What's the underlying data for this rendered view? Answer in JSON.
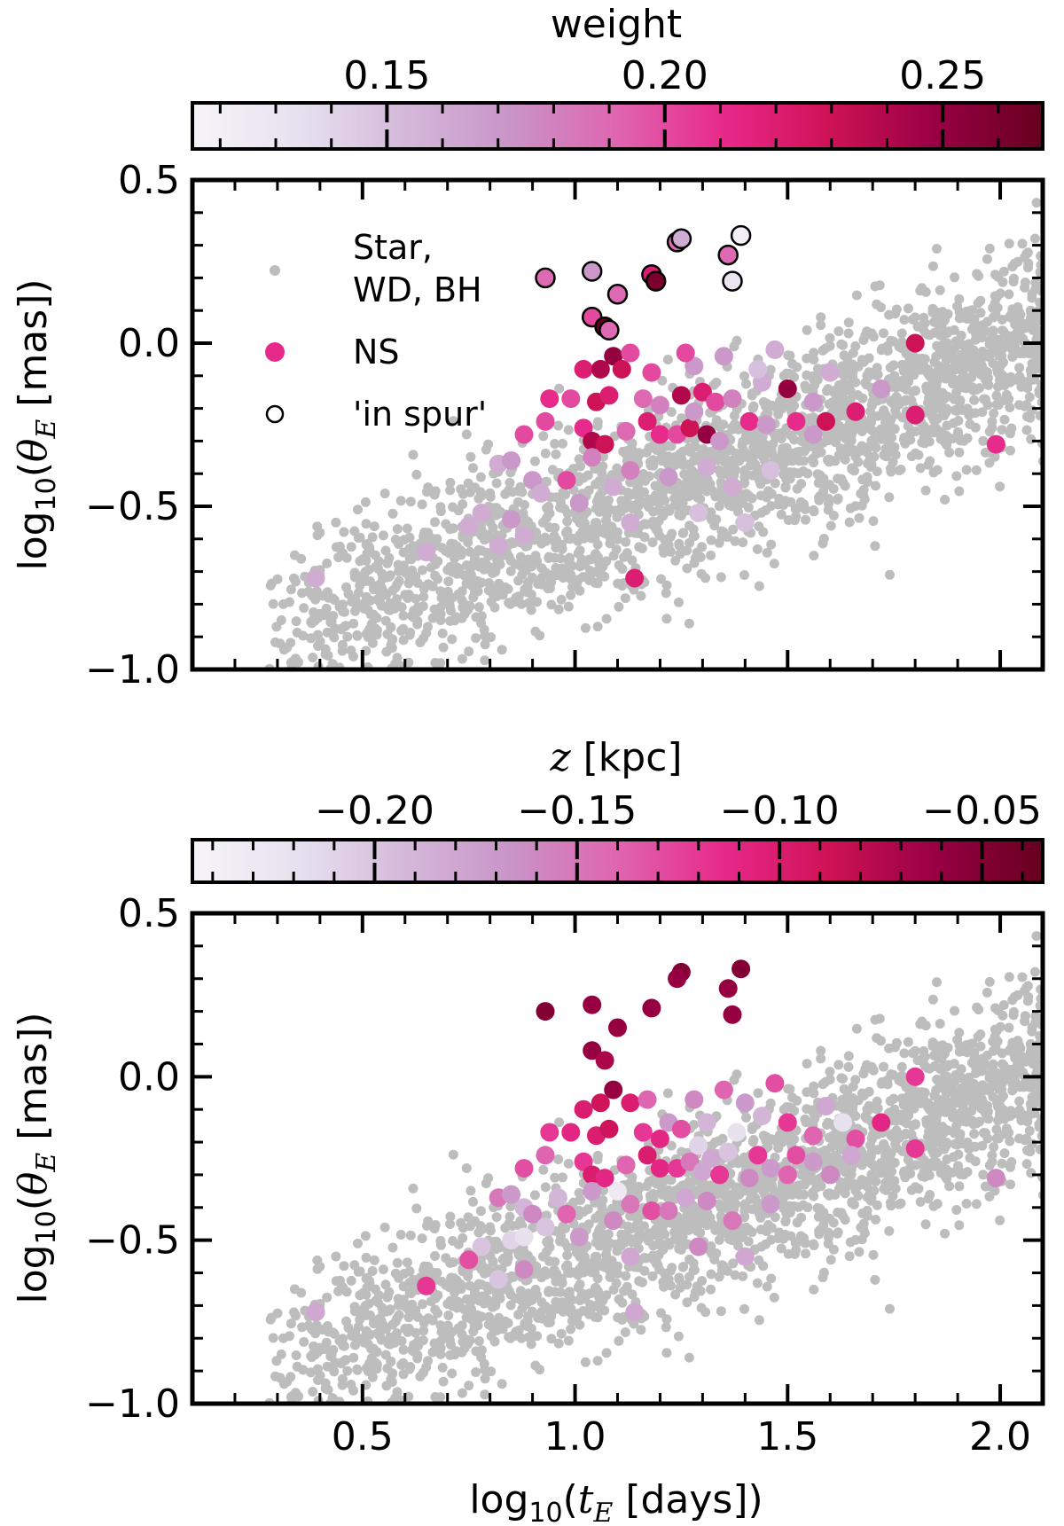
{
  "colors": {
    "background_points": "#bdbdbd",
    "ns_default": "#e7298a",
    "colormap": [
      "#f7f4f9",
      "#e7e1ef",
      "#d4b9da",
      "#c994c7",
      "#df65b0",
      "#e7298a",
      "#ce1256",
      "#980043",
      "#67001f"
    ]
  },
  "chart_data": [
    {
      "type": "scatter",
      "panel": "top",
      "xlabel": "",
      "ylabel": "log10(θE [mas])",
      "xlim": [
        0.1,
        2.1
      ],
      "ylim": [
        -1.0,
        0.5
      ],
      "yticks": [
        "0.5",
        "0.0",
        "−0.5",
        "−1.0"
      ],
      "colorbar": {
        "label": "weight",
        "range": [
          0.115,
          0.268
        ],
        "ticks": [
          "0.15",
          "0.20",
          "0.25"
        ],
        "tick_values": [
          0.15,
          0.2,
          0.25
        ]
      },
      "legend": {
        "placement": "upper-left",
        "entries": [
          {
            "line1": "Star,",
            "line2": "WD, BH"
          },
          {
            "line1": "NS"
          },
          {
            "line1": "'in spur'"
          }
        ]
      },
      "background_series": {
        "name": "Star, WD, BH",
        "count": 2400,
        "relation": "y ≈ 0.5·x − 1.05 (spread ±0.3)",
        "x_range": [
          0.25,
          2.1
        ]
      },
      "ns_points": [
        [
          0.93,
          0.2,
          0.19
        ],
        [
          1.04,
          0.22,
          0.17
        ],
        [
          1.1,
          0.15,
          0.19
        ],
        [
          1.18,
          0.21,
          0.22
        ],
        [
          1.19,
          0.19,
          0.26
        ],
        [
          1.24,
          0.31,
          0.19
        ],
        [
          1.25,
          0.32,
          0.16
        ],
        [
          1.36,
          0.27,
          0.19
        ],
        [
          1.39,
          0.33,
          0.12
        ],
        [
          1.37,
          0.19,
          0.13
        ],
        [
          1.04,
          0.08,
          0.2
        ],
        [
          1.07,
          0.05,
          0.27
        ],
        [
          1.08,
          0.04,
          0.19
        ],
        [
          1.09,
          -0.04,
          0.25
        ],
        [
          1.02,
          -0.08,
          0.22
        ],
        [
          1.06,
          -0.08,
          0.24
        ],
        [
          1.11,
          -0.08,
          0.23
        ],
        [
          1.18,
          -0.09,
          0.2
        ],
        [
          1.28,
          -0.07,
          0.17
        ],
        [
          0.94,
          -0.17,
          0.21
        ],
        [
          0.99,
          -0.17,
          0.2
        ],
        [
          1.05,
          -0.18,
          0.23
        ],
        [
          1.08,
          -0.16,
          0.22
        ],
        [
          1.16,
          -0.17,
          0.19
        ],
        [
          1.2,
          -0.19,
          0.18
        ],
        [
          1.25,
          -0.16,
          0.24
        ],
        [
          1.3,
          -0.15,
          0.22
        ],
        [
          1.33,
          -0.18,
          0.2
        ],
        [
          1.37,
          -0.17,
          0.18
        ],
        [
          1.44,
          -0.12,
          0.16
        ],
        [
          1.47,
          -0.02,
          0.16
        ],
        [
          1.5,
          -0.14,
          0.25
        ],
        [
          1.56,
          -0.18,
          0.17
        ],
        [
          1.6,
          -0.09,
          0.16
        ],
        [
          1.66,
          -0.21,
          0.22
        ],
        [
          1.72,
          -0.14,
          0.17
        ],
        [
          1.8,
          0.0,
          0.23
        ],
        [
          1.8,
          -0.22,
          0.22
        ],
        [
          1.99,
          -0.31,
          0.21
        ],
        [
          1.43,
          -0.08,
          0.15
        ],
        [
          1.35,
          -0.04,
          0.17
        ],
        [
          1.26,
          -0.03,
          0.2
        ],
        [
          1.13,
          -0.03,
          0.2
        ],
        [
          0.88,
          -0.28,
          0.2
        ],
        [
          0.93,
          -0.24,
          0.2
        ],
        [
          1.02,
          -0.26,
          0.21
        ],
        [
          1.04,
          -0.3,
          0.24
        ],
        [
          1.07,
          -0.31,
          0.23
        ],
        [
          1.12,
          -0.27,
          0.19
        ],
        [
          1.17,
          -0.24,
          0.22
        ],
        [
          1.2,
          -0.28,
          0.21
        ],
        [
          1.24,
          -0.28,
          0.2
        ],
        [
          1.27,
          -0.26,
          0.23
        ],
        [
          1.31,
          -0.28,
          0.25
        ],
        [
          1.34,
          -0.3,
          0.17
        ],
        [
          1.41,
          -0.24,
          0.21
        ],
        [
          1.45,
          -0.25,
          0.17
        ],
        [
          1.52,
          -0.24,
          0.21
        ],
        [
          1.59,
          -0.24,
          0.23
        ],
        [
          1.56,
          -0.28,
          0.17
        ],
        [
          1.28,
          -0.21,
          0.17
        ],
        [
          0.82,
          -0.37,
          0.16
        ],
        [
          0.85,
          -0.36,
          0.17
        ],
        [
          0.9,
          -0.42,
          0.17
        ],
        [
          0.98,
          -0.42,
          0.2
        ],
        [
          1.01,
          -0.49,
          0.17
        ],
        [
          1.04,
          -0.35,
          0.18
        ],
        [
          1.09,
          -0.44,
          0.16
        ],
        [
          1.13,
          -0.39,
          0.18
        ],
        [
          1.22,
          -0.41,
          0.17
        ],
        [
          1.31,
          -0.38,
          0.16
        ],
        [
          1.37,
          -0.44,
          0.16
        ],
        [
          1.46,
          -0.39,
          0.15
        ],
        [
          0.92,
          -0.46,
          0.16
        ],
        [
          0.85,
          -0.54,
          0.17
        ],
        [
          0.78,
          -0.52,
          0.16
        ],
        [
          0.75,
          -0.56,
          0.16
        ],
        [
          0.82,
          -0.62,
          0.16
        ],
        [
          0.88,
          -0.59,
          0.16
        ],
        [
          1.13,
          -0.55,
          0.16
        ],
        [
          1.29,
          -0.52,
          0.15
        ],
        [
          1.4,
          -0.55,
          0.15
        ],
        [
          1.14,
          -0.72,
          0.22
        ],
        [
          0.65,
          -0.64,
          0.16
        ],
        [
          0.39,
          -0.72,
          0.16
        ]
      ],
      "in_spur_indices": [
        0,
        1,
        2,
        3,
        4,
        5,
        6,
        7,
        8,
        9,
        10,
        11,
        12
      ]
    },
    {
      "type": "scatter",
      "panel": "bottom",
      "xlabel": "log10(tE [days])",
      "ylabel": "log10(θE [mas])",
      "xlim": [
        0.1,
        2.1
      ],
      "ylim": [
        -1.0,
        0.5
      ],
      "xticks": [
        "0.5",
        "1.0",
        "1.5",
        "2.0"
      ],
      "yticks": [
        "0.5",
        "0.0",
        "−0.5",
        "−1.0"
      ],
      "colorbar": {
        "label": "z [kpc]",
        "range": [
          -0.245,
          -0.035
        ],
        "ticks": [
          "−0.20",
          "−0.15",
          "−0.10",
          "−0.05"
        ],
        "tick_values": [
          -0.2,
          -0.15,
          -0.1,
          -0.05
        ]
      },
      "background_series": {
        "name": "Star, WD, BH",
        "count": 2400,
        "relation": "y ≈ 0.5·x − 1.05 (spread ±0.3)",
        "x_range": [
          0.25,
          2.1
        ]
      },
      "ns_points": [
        [
          0.93,
          0.2,
          -0.05
        ],
        [
          1.04,
          0.22,
          -0.06
        ],
        [
          1.1,
          0.15,
          -0.06
        ],
        [
          1.18,
          0.21,
          -0.06
        ],
        [
          1.25,
          0.32,
          -0.05
        ],
        [
          1.24,
          0.3,
          -0.06
        ],
        [
          1.39,
          0.33,
          -0.05
        ],
        [
          1.36,
          0.27,
          -0.06
        ],
        [
          1.37,
          0.19,
          -0.06
        ],
        [
          1.04,
          0.08,
          -0.06
        ],
        [
          1.07,
          0.05,
          -0.07
        ],
        [
          1.09,
          -0.04,
          -0.06
        ],
        [
          1.47,
          -0.02,
          -0.13
        ],
        [
          1.8,
          0.0,
          -0.12
        ],
        [
          1.02,
          -0.1,
          -0.1
        ],
        [
          1.06,
          -0.08,
          -0.09
        ],
        [
          1.13,
          -0.08,
          -0.1
        ],
        [
          1.17,
          -0.07,
          -0.14
        ],
        [
          1.22,
          -0.14,
          -0.17
        ],
        [
          1.28,
          -0.07,
          -0.16
        ],
        [
          1.31,
          -0.14,
          -0.19
        ],
        [
          1.35,
          -0.04,
          -0.14
        ],
        [
          1.4,
          -0.08,
          -0.17
        ],
        [
          1.44,
          -0.12,
          -0.19
        ],
        [
          1.5,
          -0.14,
          -0.12
        ],
        [
          1.59,
          -0.09,
          -0.18
        ],
        [
          1.63,
          -0.14,
          -0.22
        ],
        [
          1.66,
          -0.19,
          -0.13
        ],
        [
          1.72,
          -0.14,
          -0.11
        ],
        [
          1.8,
          -0.22,
          -0.12
        ],
        [
          1.99,
          -0.31,
          -0.16
        ],
        [
          1.38,
          -0.17,
          -0.22
        ],
        [
          1.29,
          -0.21,
          -0.21
        ],
        [
          1.32,
          -0.25,
          -0.18
        ],
        [
          0.94,
          -0.17,
          -0.12
        ],
        [
          0.99,
          -0.17,
          -0.11
        ],
        [
          1.05,
          -0.18,
          -0.1
        ],
        [
          1.08,
          -0.16,
          -0.09
        ],
        [
          1.16,
          -0.17,
          -0.12
        ],
        [
          1.2,
          -0.19,
          -0.11
        ],
        [
          1.25,
          -0.16,
          -0.13
        ],
        [
          1.43,
          -0.24,
          -0.12
        ],
        [
          1.52,
          -0.24,
          -0.13
        ],
        [
          1.56,
          -0.18,
          -0.14
        ],
        [
          0.88,
          -0.28,
          -0.13
        ],
        [
          0.93,
          -0.24,
          -0.14
        ],
        [
          1.02,
          -0.26,
          -0.12
        ],
        [
          1.04,
          -0.3,
          -0.1
        ],
        [
          1.07,
          -0.31,
          -0.11
        ],
        [
          1.12,
          -0.27,
          -0.14
        ],
        [
          1.17,
          -0.24,
          -0.1
        ],
        [
          1.2,
          -0.28,
          -0.11
        ],
        [
          1.24,
          -0.28,
          -0.12
        ],
        [
          1.27,
          -0.26,
          -0.15
        ],
        [
          1.3,
          -0.29,
          -0.18
        ],
        [
          1.34,
          -0.3,
          -0.12
        ],
        [
          1.36,
          -0.23,
          -0.2
        ],
        [
          1.41,
          -0.31,
          -0.16
        ],
        [
          1.46,
          -0.28,
          -0.17
        ],
        [
          1.5,
          -0.3,
          -0.14
        ],
        [
          1.56,
          -0.26,
          -0.17
        ],
        [
          1.6,
          -0.3,
          -0.16
        ],
        [
          1.65,
          -0.24,
          -0.18
        ],
        [
          0.82,
          -0.37,
          -0.15
        ],
        [
          0.85,
          -0.36,
          -0.17
        ],
        [
          0.88,
          -0.4,
          -0.19
        ],
        [
          0.9,
          -0.42,
          -0.16
        ],
        [
          0.98,
          -0.42,
          -0.14
        ],
        [
          1.01,
          -0.49,
          -0.17
        ],
        [
          1.04,
          -0.35,
          -0.17
        ],
        [
          1.09,
          -0.44,
          -0.16
        ],
        [
          1.13,
          -0.39,
          -0.15
        ],
        [
          1.18,
          -0.41,
          -0.13
        ],
        [
          1.22,
          -0.41,
          -0.15
        ],
        [
          1.26,
          -0.37,
          -0.18
        ],
        [
          1.31,
          -0.38,
          -0.16
        ],
        [
          1.37,
          -0.44,
          -0.15
        ],
        [
          1.46,
          -0.39,
          -0.17
        ],
        [
          1.1,
          -0.35,
          -0.23
        ],
        [
          0.96,
          -0.37,
          -0.19
        ],
        [
          0.93,
          -0.46,
          -0.2
        ],
        [
          0.85,
          -0.5,
          -0.21
        ],
        [
          0.88,
          -0.49,
          -0.22
        ],
        [
          0.78,
          -0.52,
          -0.2
        ],
        [
          0.75,
          -0.56,
          -0.13
        ],
        [
          0.82,
          -0.62,
          -0.2
        ],
        [
          0.88,
          -0.59,
          -0.16
        ],
        [
          1.13,
          -0.55,
          -0.18
        ],
        [
          1.29,
          -0.52,
          -0.16
        ],
        [
          1.4,
          -0.55,
          -0.18
        ],
        [
          1.14,
          -0.72,
          -0.18
        ],
        [
          0.65,
          -0.64,
          -0.12
        ],
        [
          0.39,
          -0.72,
          -0.18
        ]
      ]
    }
  ]
}
